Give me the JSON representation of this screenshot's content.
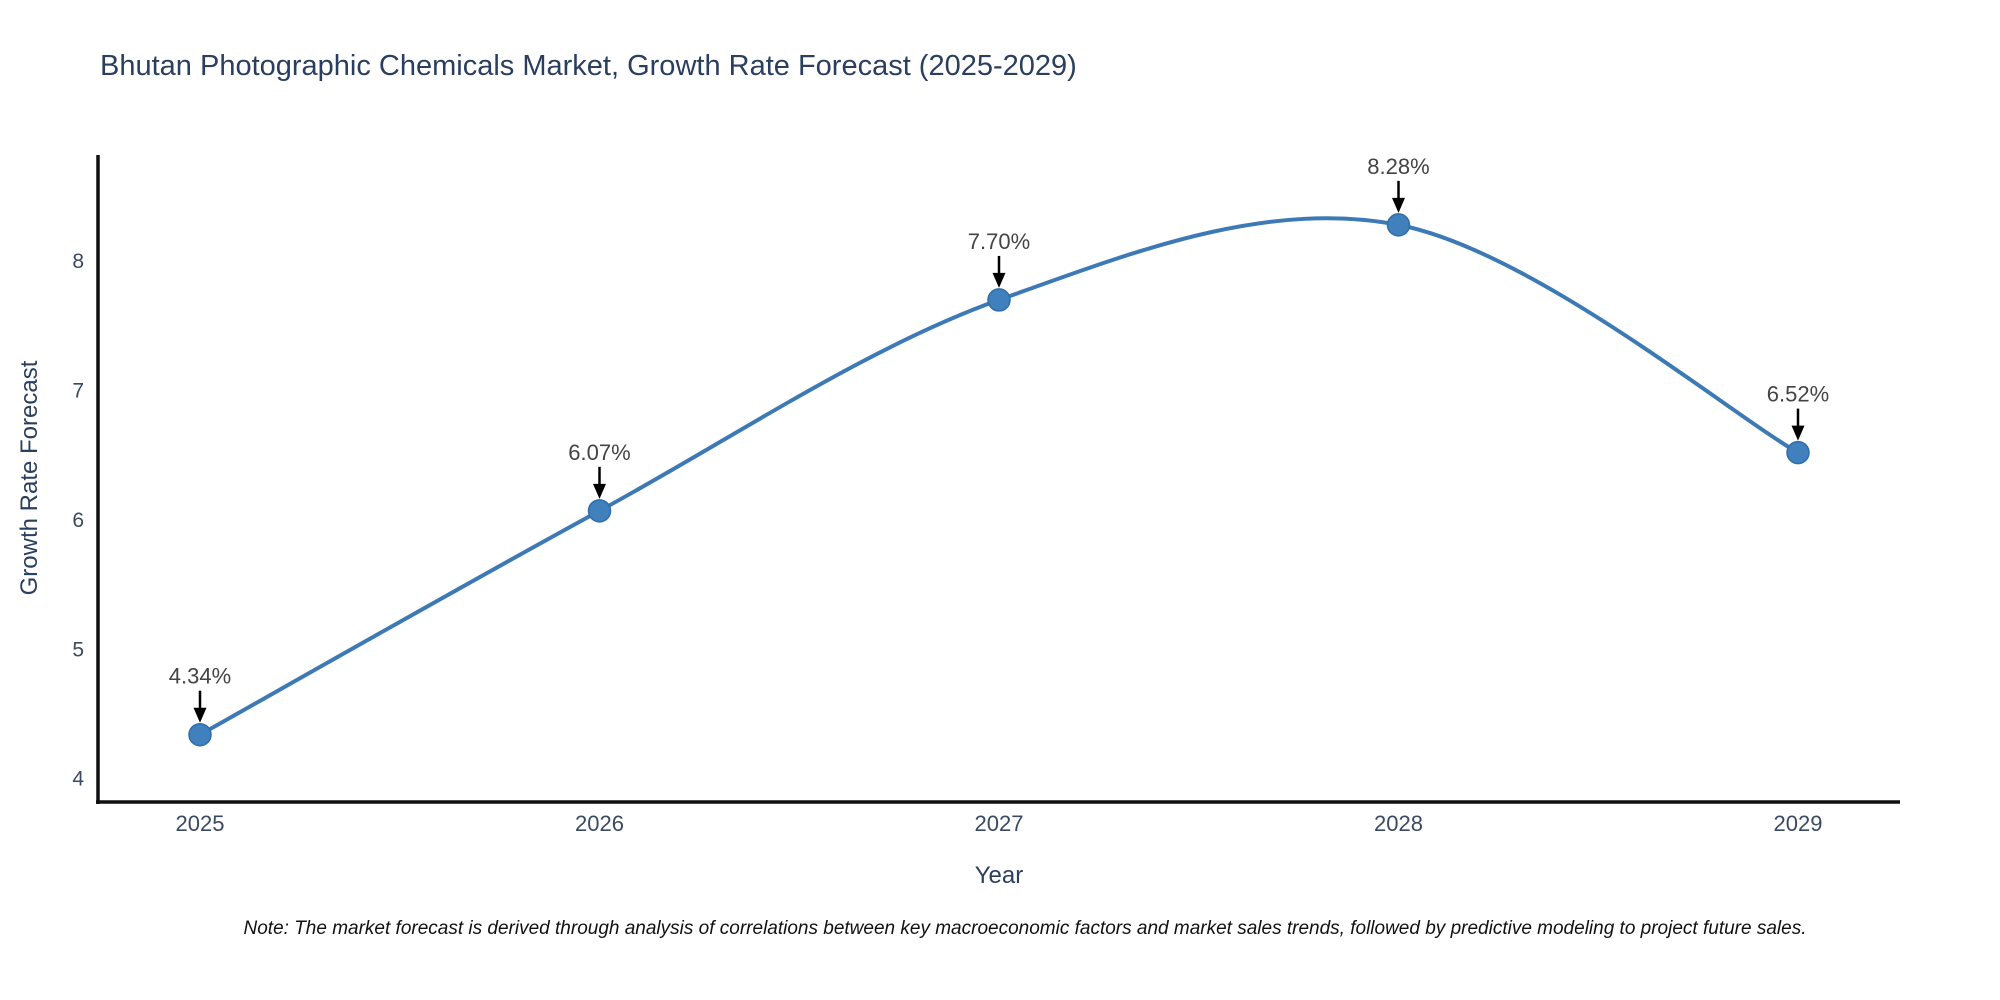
{
  "note": "Note: The market forecast is derived through analysis of correlations between key macroeconomic factors and market sales trends, followed by predictive modeling to project future sales.",
  "chart_data": {
    "type": "line",
    "title": "Bhutan Photographic Chemicals Market, Growth Rate Forecast (2025-2029)",
    "categories": [
      "2025",
      "2026",
      "2027",
      "2028",
      "2029"
    ],
    "series": [
      {
        "name": "Growth Rate Forecast",
        "values": [
          4.34,
          6.07,
          7.7,
          8.28,
          6.52
        ]
      }
    ],
    "point_labels": [
      "4.34%",
      "6.07%",
      "7.70%",
      "8.28%",
      "6.52%"
    ],
    "xlabel": "Year",
    "ylabel": "Growth Rate Forecast",
    "ylim": [
      3.82,
      8.82
    ],
    "yticks": [
      4,
      5,
      6,
      7,
      8
    ],
    "line_shape": "spline",
    "grid": false,
    "legend": "none",
    "colors": {
      "line": "#3d7ab5",
      "marker": "#3f80bd",
      "marker_edge": "#2f6dab",
      "annotation_text": "#444444",
      "annotation_arrow": "#000000",
      "title": "#2a3f5f",
      "axis_label": "#2a3f5f",
      "tick_label": "#3b4a63",
      "spine": "#101010",
      "note": "#111111"
    }
  }
}
